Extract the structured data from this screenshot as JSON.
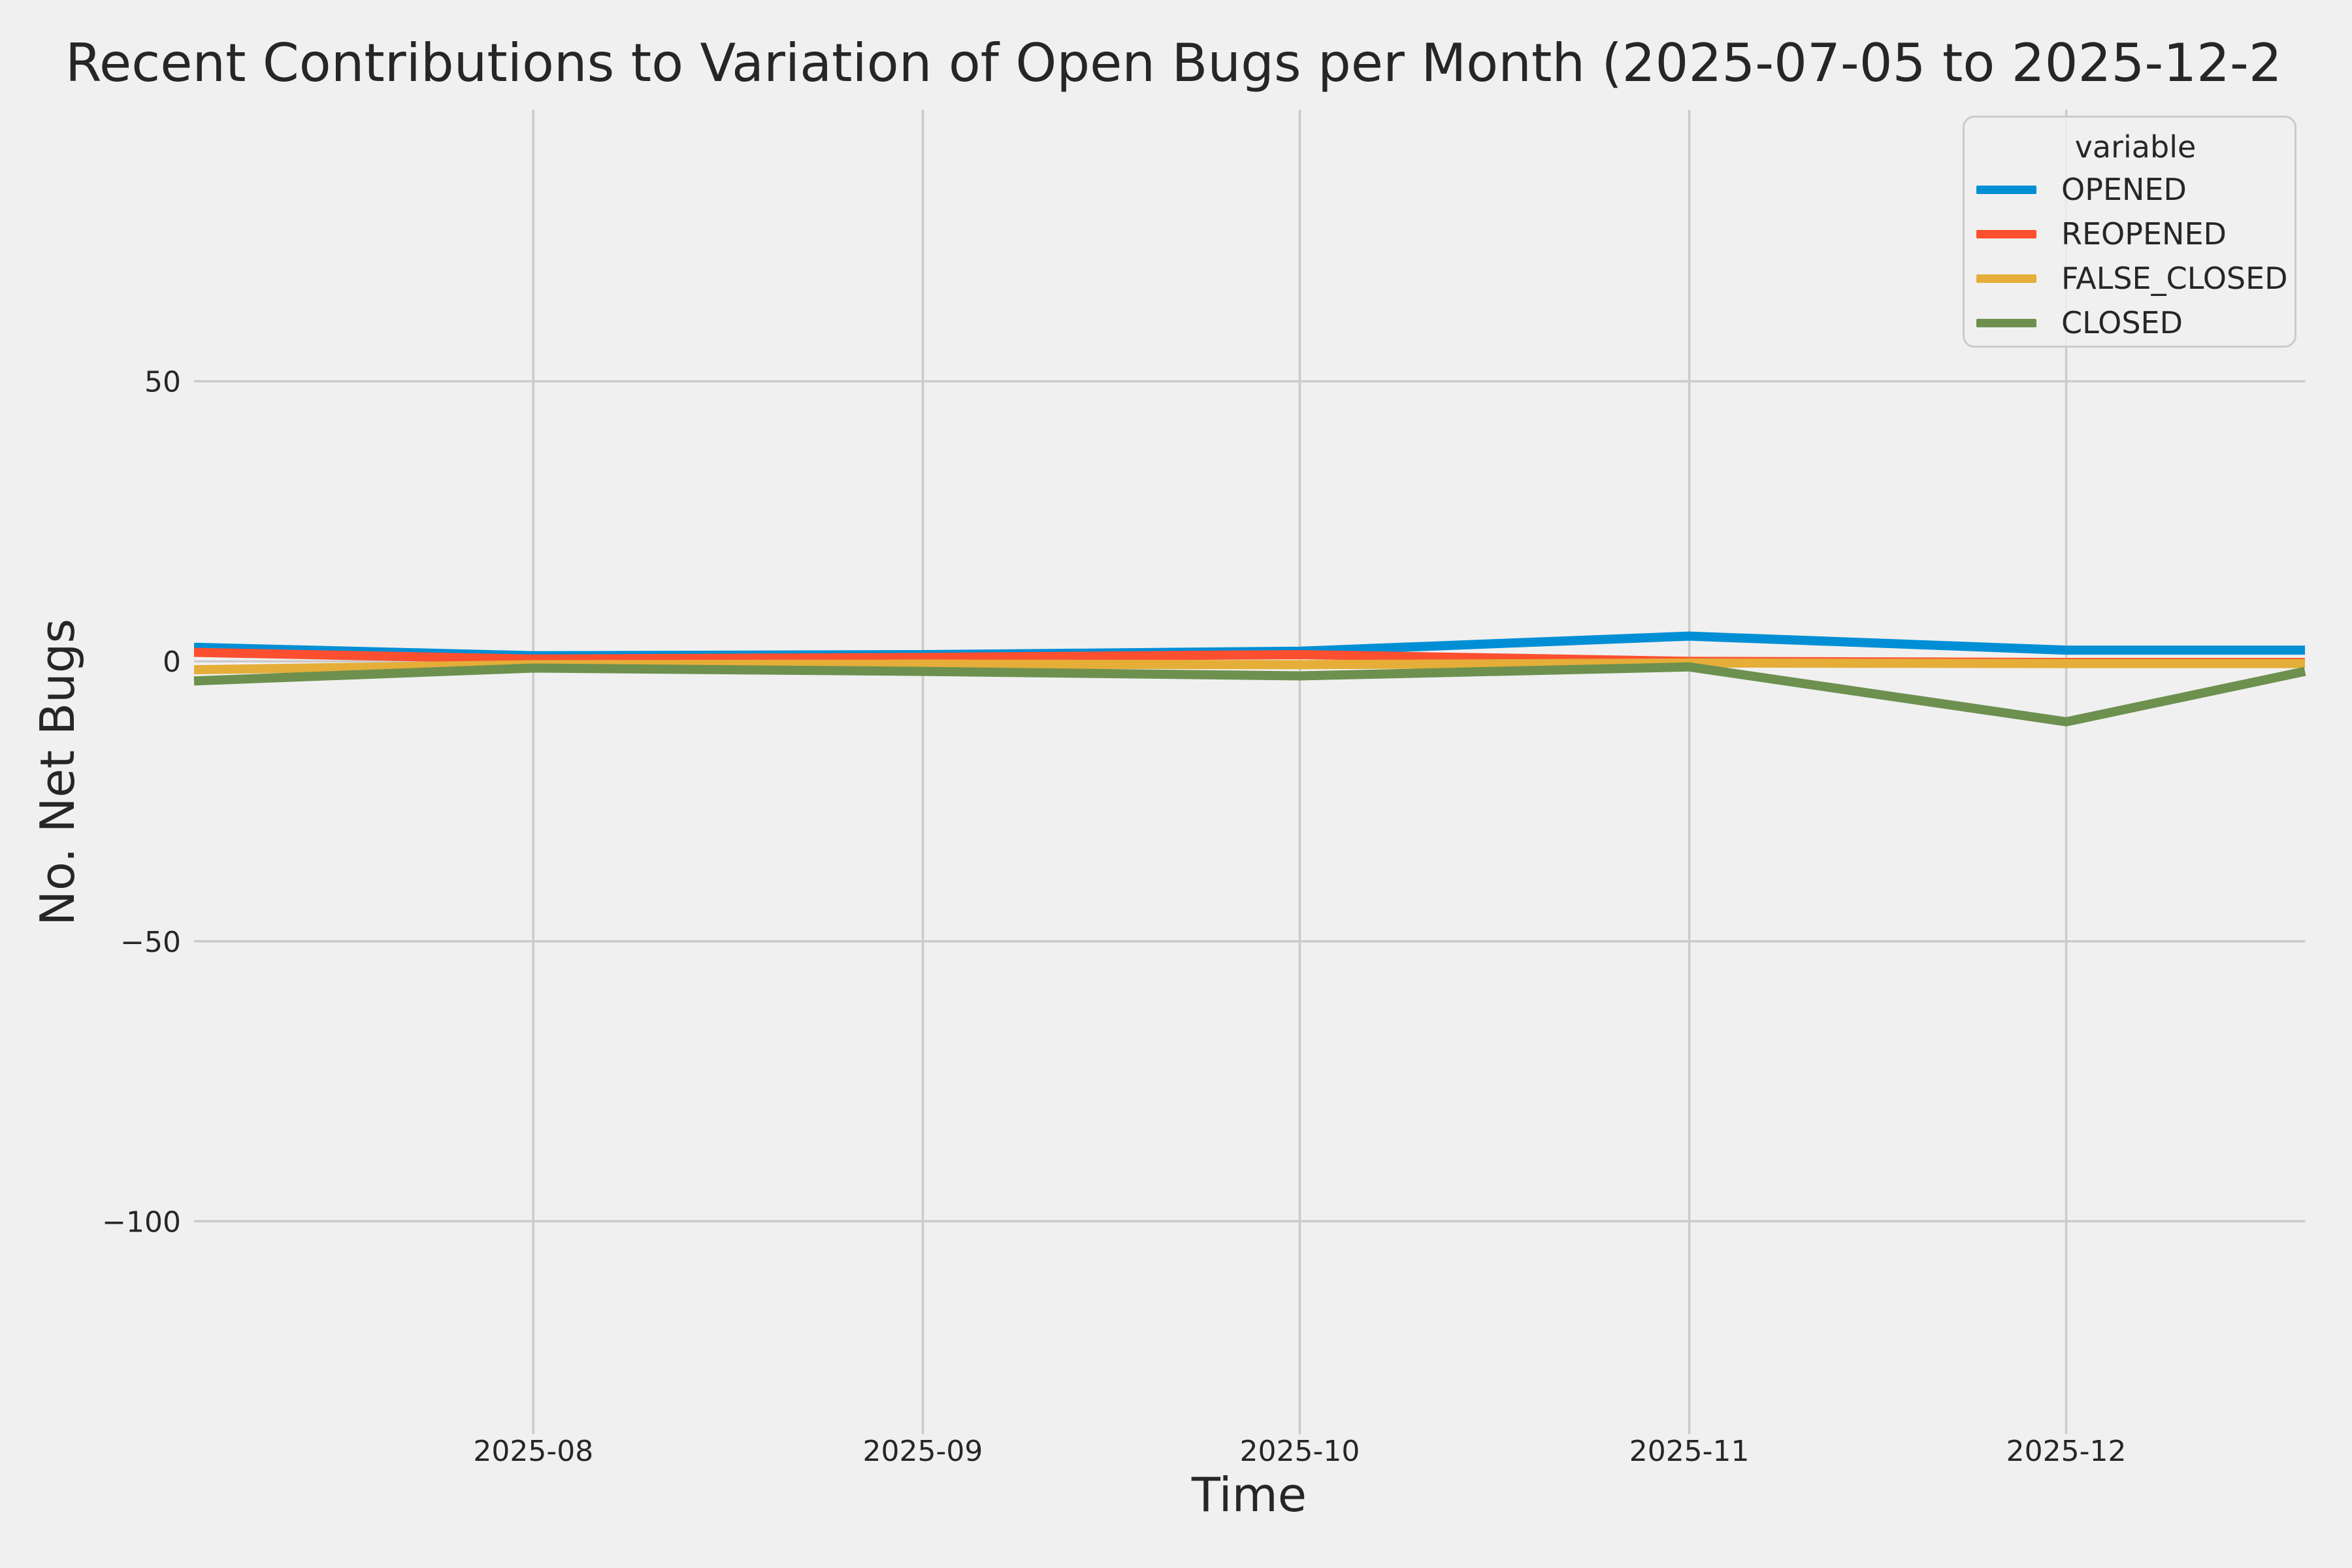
{
  "figure": {
    "background_color": "#f0f0f0",
    "grid_color": "#cbcbcb",
    "text_color": "#262626"
  },
  "chart_data": {
    "type": "line",
    "title": "Recent Contributions to Variation of Open Bugs per Month (2025-07-05 to 2025-12-2",
    "xlabel": "Time",
    "ylabel": "No. Net Bugs",
    "legend_title": "variable",
    "legend_position": "upper right",
    "grid": true,
    "x_axis_unit": "days since 2025-07-05",
    "xlim": [
      0,
      168
    ],
    "ylim": [
      -138,
      98.5
    ],
    "x": [
      0,
      27,
      58,
      88,
      119,
      149,
      168
    ],
    "x_ticks": [
      {
        "label": "2025-08",
        "value": 27
      },
      {
        "label": "2025-09",
        "value": 58
      },
      {
        "label": "2025-10",
        "value": 88
      },
      {
        "label": "2025-11",
        "value": 119
      },
      {
        "label": "2025-12",
        "value": 149
      }
    ],
    "y_ticks": [
      {
        "label": "50",
        "value": 50
      },
      {
        "label": "0",
        "value": 0
      },
      {
        "label": "−50",
        "value": -50
      },
      {
        "label": "−100",
        "value": -100
      }
    ],
    "series": [
      {
        "name": "OPENED",
        "color": "#008fd5",
        "values": [
          2.5,
          1.0,
          1.2,
          1.8,
          4.5,
          2.0,
          2.0
        ]
      },
      {
        "name": "REOPENED",
        "color": "#fc4f30",
        "values": [
          1.6,
          0.4,
          0.7,
          1.2,
          0.0,
          -0.2,
          -0.2
        ]
      },
      {
        "name": "FALSE_CLOSED",
        "color": "#e5ae38",
        "values": [
          -1.5,
          -0.6,
          -0.5,
          -0.6,
          -0.3,
          -0.4,
          -0.4
        ]
      },
      {
        "name": "CLOSED",
        "color": "#6d904f",
        "values": [
          -3.5,
          -1.2,
          -1.8,
          -2.6,
          -1.0,
          -10.8,
          -1.8
        ]
      }
    ]
  }
}
